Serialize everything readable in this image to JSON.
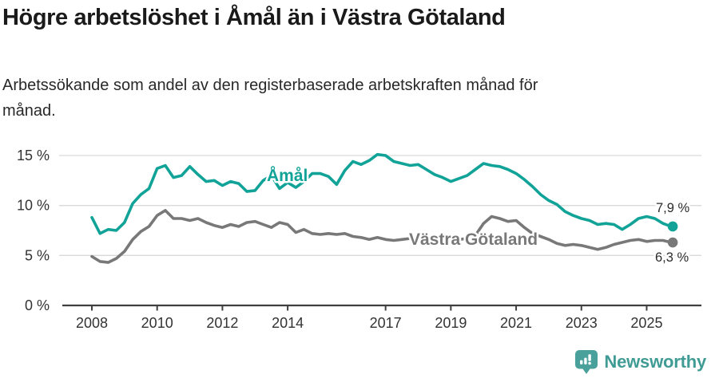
{
  "chart_data": {
    "type": "line",
    "title": "Högre arbetslöshet i Åmål än i Västra Götaland",
    "subtitle": "Arbetssökande som andel av den registerbaserade arbetskraften månad för månad.",
    "grid": true,
    "x_axis": {
      "ticks": [
        2008,
        2010,
        2012,
        2014,
        2017,
        2019,
        2021,
        2023,
        2025
      ],
      "range": [
        2007.1,
        2026.7
      ]
    },
    "y_axis": {
      "unit": "%",
      "tick_values": [
        0,
        5,
        10,
        15
      ],
      "tick_labels": [
        "0 %",
        "5 %",
        "10 %",
        "15 %"
      ],
      "range": [
        0,
        16.6
      ]
    },
    "x_start": 2008.0,
    "x_step": 0.25,
    "series": [
      {
        "name": "Åmål",
        "color": "#12a398",
        "end_value": 7.9,
        "end_label": "7,9 %",
        "values": [
          8.8,
          7.2,
          7.6,
          7.5,
          8.3,
          10.2,
          11.1,
          11.7,
          13.7,
          14.0,
          12.8,
          13.0,
          13.9,
          13.1,
          12.4,
          12.5,
          12.0,
          12.4,
          12.2,
          11.4,
          11.5,
          12.5,
          13.0,
          11.7,
          12.3,
          11.8,
          12.4,
          13.2,
          13.2,
          12.9,
          12.1,
          13.5,
          14.4,
          14.1,
          14.5,
          15.1,
          15.0,
          14.4,
          14.2,
          14.0,
          14.1,
          13.6,
          13.1,
          12.8,
          12.4,
          12.7,
          13.0,
          13.6,
          14.2,
          14.0,
          13.9,
          13.6,
          13.2,
          12.6,
          11.9,
          11.1,
          10.5,
          10.1,
          9.4,
          9.0,
          8.7,
          8.5,
          8.1,
          8.2,
          8.1,
          7.6,
          8.1,
          8.7,
          8.9,
          8.7,
          8.2,
          7.9
        ]
      },
      {
        "name": "Västra Götaland",
        "color": "#787878",
        "end_value": 6.3,
        "end_label": "6,3 %",
        "values": [
          4.9,
          4.4,
          4.3,
          4.7,
          5.4,
          6.6,
          7.4,
          7.9,
          9.0,
          9.5,
          8.7,
          8.7,
          8.5,
          8.7,
          8.3,
          8.0,
          7.8,
          8.1,
          7.9,
          8.3,
          8.4,
          8.1,
          7.8,
          8.3,
          8.1,
          7.3,
          7.6,
          7.2,
          7.1,
          7.2,
          7.1,
          7.2,
          6.9,
          6.8,
          6.6,
          6.8,
          6.6,
          6.5,
          6.6,
          6.7,
          6.6,
          6.5,
          6.4,
          6.6,
          6.5,
          6.6,
          6.7,
          7.0,
          8.2,
          8.9,
          8.7,
          8.4,
          8.5,
          7.8,
          7.2,
          6.9,
          6.6,
          6.2,
          6.0,
          6.1,
          6.0,
          5.8,
          5.6,
          5.8,
          6.1,
          6.3,
          6.5,
          6.6,
          6.4,
          6.5,
          6.5,
          6.3
        ]
      }
    ],
    "legend_position": "inline-labels"
  },
  "colors": {
    "accent_teal": "#12a398",
    "series_gray": "#787878",
    "grid": "#d9d9d9",
    "axis": "#3f3f3f",
    "title_text": "#1a1a1a",
    "body_text": "#282828",
    "tick_text": "#333333",
    "background": "#ffffff"
  },
  "footer": {
    "brand": "Newsworthy",
    "brand_color": "#3f9b94",
    "logo_icon": "newsworthy-speech-bubble-bar-chart-icon",
    "logo_bubble_color": "#4aa09b",
    "logo_glyph_color": "#ffffff"
  }
}
